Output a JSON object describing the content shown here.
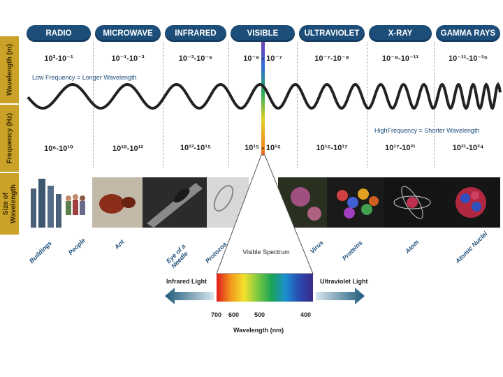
{
  "sidebar": {
    "wavelength": "Wavelength (m)",
    "frequency": "Frequency (Hz)",
    "size": "Size of Wavelength"
  },
  "bands": [
    {
      "name": "RADIO",
      "wavelength": "10³-10⁻¹",
      "frequency": "10⁶-10¹⁰"
    },
    {
      "name": "MICROWAVE",
      "wavelength": "10⁻¹-10⁻³",
      "frequency": "10¹⁰-10¹²"
    },
    {
      "name": "INFRARED",
      "wavelength": "10⁻³-10⁻⁶",
      "frequency": "10¹²-10¹⁵"
    },
    {
      "name": "VISIBLE",
      "wavelength": "10⁻⁶ - 10⁻⁷",
      "frequency": "10¹⁵ - 10¹⁶"
    },
    {
      "name": "ULTRAVIOLET",
      "wavelength": "10⁻⁷-10⁻⁸",
      "frequency": "10¹⁶-10¹⁷"
    },
    {
      "name": "X-RAY",
      "wavelength": "10⁻⁸-10⁻¹¹",
      "frequency": "10¹⁷-10²¹"
    },
    {
      "name": "GAMMA RAYS",
      "wavelength": "10⁻¹¹-10⁻¹⁵",
      "frequency": "10²¹-10²⁴"
    }
  ],
  "notes": {
    "low": "Low Frequency = Longer Wavelength",
    "high": "HighFrequency = Shorter Wavelength"
  },
  "objects": [
    "Buildings",
    "People",
    "Ant",
    "Eye of a Needle",
    "Protozoa",
    "Virus",
    "Proteins",
    "Atom",
    "Atomic Nuclei"
  ],
  "spectrum": {
    "title": "Visible Spectrum",
    "infrared": "Infrared Light",
    "ultraviolet": "Ultraviolet Light",
    "ticks": [
      "700",
      "600",
      "500",
      "400"
    ],
    "axis_label": "Wavelength (nm)"
  },
  "colors": {
    "header": "#1d4e7a",
    "sidebar": "#c9a227",
    "wave": "#222222"
  }
}
